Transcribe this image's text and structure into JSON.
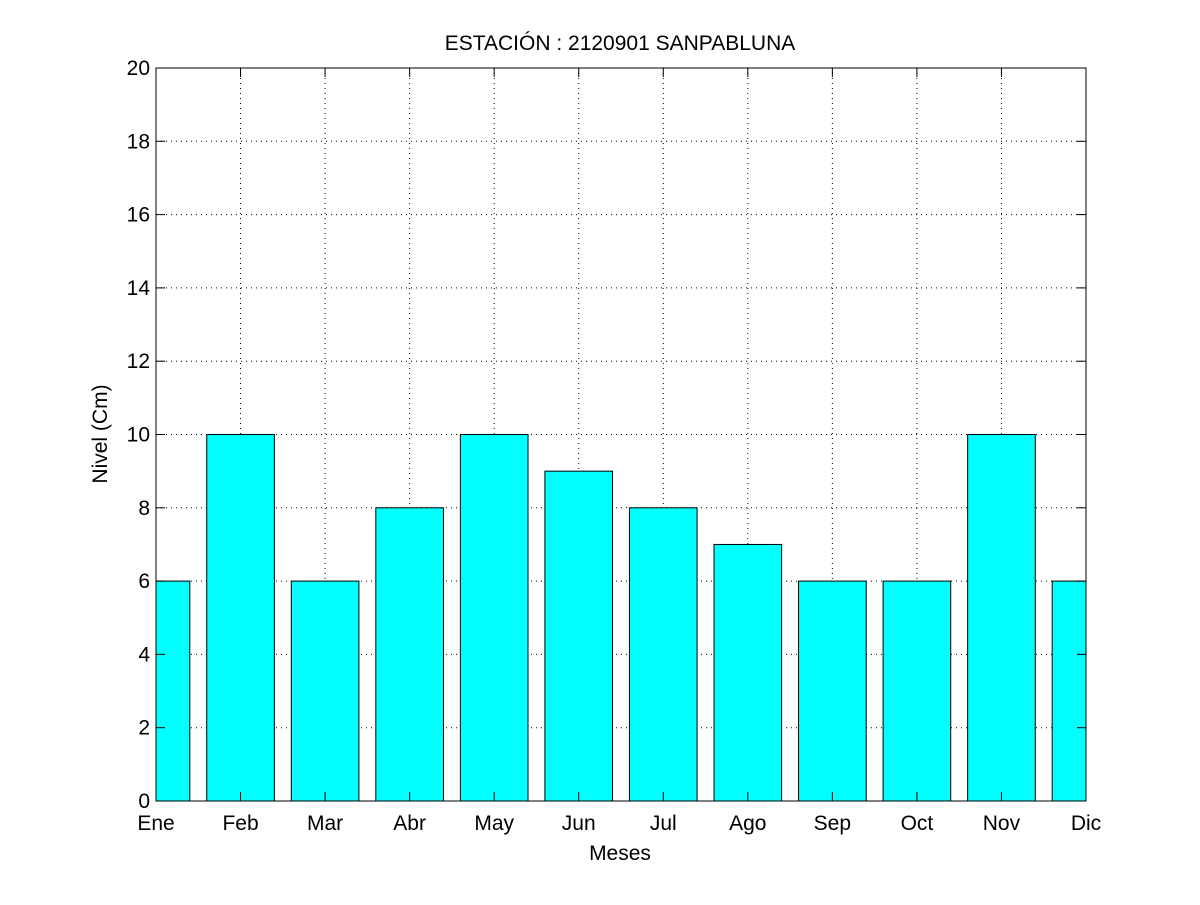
{
  "chart_data": {
    "type": "bar",
    "title": "ESTACIÓN :  2120901  SANPABLUNA",
    "xlabel": "Meses",
    "ylabel": "Nivel (Cm)",
    "categories": [
      "Ene",
      "Feb",
      "Mar",
      "Abr",
      "May",
      "Jun",
      "Jul",
      "Ago",
      "Sep",
      "Oct",
      "Nov",
      "Dic"
    ],
    "values": [
      6,
      10,
      6,
      8,
      10,
      9,
      8,
      7,
      6,
      6,
      10,
      6
    ],
    "ylim": [
      0,
      20
    ],
    "yticks": [
      0,
      2,
      4,
      6,
      8,
      10,
      12,
      14,
      16,
      18,
      20
    ],
    "grid": true,
    "colors": {
      "bar_fill": "#00ffff",
      "bar_stroke": "#000000",
      "grid": "#000000",
      "background": "#ffffff"
    }
  }
}
